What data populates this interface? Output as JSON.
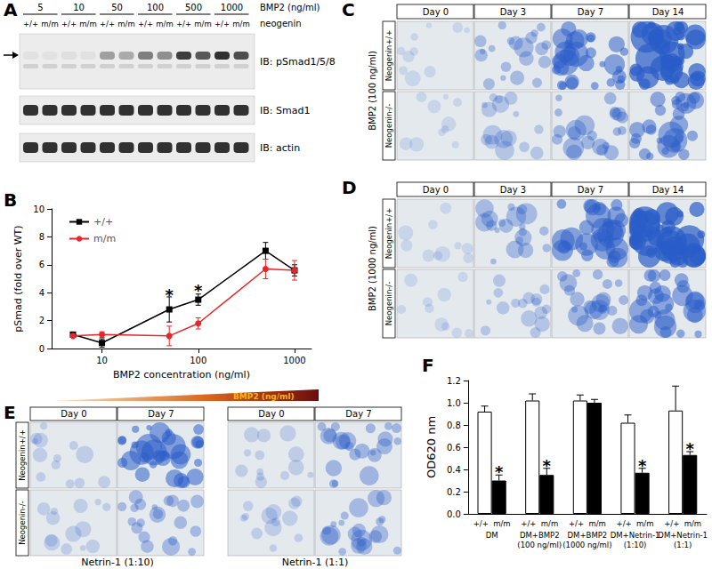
{
  "panels": {
    "A": {
      "panel_label": "A",
      "header": {
        "treatment": "BMP2 (ng/ml)",
        "genotype_row": "neogenin"
      },
      "concentrations": [
        "5",
        "10",
        "50",
        "100",
        "500",
        "1000"
      ],
      "genotypes": [
        "+/+",
        "m/m"
      ],
      "blots": [
        "IB: pSmad1/5/8",
        "IB: Smad1",
        "IB: actin"
      ]
    },
    "C": {
      "panel_label": "C",
      "condition": "BMP2 (100 ng/ml)",
      "days": [
        "Day 0",
        "Day 3",
        "Day 7",
        "Day 14"
      ],
      "rows": [
        "Neogenin+/+",
        "Neogenin-/-"
      ]
    },
    "D": {
      "panel_label": "D",
      "condition": "BMP2 (1000 ng/ml)",
      "days": [
        "Day 0",
        "Day 3",
        "Day 7",
        "Day 14"
      ],
      "rows": [
        "Neogenin+/+",
        "Neogenin-/-"
      ]
    },
    "E": {
      "panel_label": "E",
      "days": [
        "Day 0",
        "Day 7"
      ],
      "rows": [
        "Neogenin+/+",
        "Neogenin-/-"
      ],
      "groups": [
        "Netrin-1 (1:10)",
        "Netrin-1 (1:1)"
      ]
    }
  },
  "chart_data": [
    {
      "panel_label": "B",
      "type": "line",
      "log": "x",
      "x": [
        5,
        10,
        50,
        100,
        500,
        1000
      ],
      "series": [
        {
          "name": "+/+",
          "color": "#000000",
          "marker": "square",
          "values": [
            1.0,
            0.4,
            2.8,
            3.5,
            7.0,
            5.6
          ],
          "errors": [
            0.1,
            0.3,
            0.9,
            0.4,
            0.6,
            0.4
          ]
        },
        {
          "name": "m/m",
          "color": "#e8262a",
          "marker": "circle",
          "values": [
            0.9,
            1.0,
            0.9,
            1.8,
            5.7,
            5.6
          ],
          "errors": [
            0.1,
            0.2,
            0.7,
            0.4,
            0.7,
            0.7
          ]
        }
      ],
      "x_label": "BMP2 concentration (ng/ml)",
      "y_label": "pSmad (fold over WT)",
      "xlim": [
        3,
        1500
      ],
      "xticks": [
        10,
        100,
        1000
      ],
      "ylim": [
        0,
        10
      ],
      "yticks": [
        0,
        2,
        4,
        6,
        8,
        10
      ],
      "legend": "top-left",
      "annotations": [
        {
          "text": "*",
          "x": 50,
          "y": 3.8
        },
        {
          "text": "*",
          "x": 100,
          "y": 4.1
        }
      ],
      "gradient_label": "BMP2 (ng/ml)"
    },
    {
      "panel_label": "F",
      "type": "bar",
      "categories": [
        "DM",
        "DM+BMP2 (100 ng/ml)",
        "DM+BMP2 (1000 ng/ml)",
        "DM+Netrin-1 (1:10)",
        "DM+Netrin-1 (1:1)"
      ],
      "series": [
        {
          "name": "+/+",
          "color": "#ffffff",
          "values": [
            0.92,
            1.02,
            1.02,
            0.82,
            0.93
          ],
          "errors": [
            0.05,
            0.06,
            0.05,
            0.07,
            0.22
          ]
        },
        {
          "name": "m/m",
          "color": "#000000",
          "values": [
            0.3,
            0.35,
            1.0,
            0.37,
            0.53
          ],
          "errors": [
            0.05,
            0.06,
            0.03,
            0.04,
            0.03
          ]
        }
      ],
      "y_label": "OD620 nm",
      "ylim": [
        0,
        1.2
      ],
      "yticks": [
        {
          "value": 0,
          "label": "0.0"
        },
        0.2,
        0.4,
        0.6,
        0.8,
        {
          "value": 1.0,
          "label": "1.0"
        },
        1.2
      ],
      "annotations": [
        {
          "text": "*",
          "category": "DM",
          "series": "m/m",
          "y": 0.37
        },
        {
          "text": "*",
          "category": "DM+BMP2 (100 ng/ml)",
          "series": "m/m",
          "y": 0.43
        },
        {
          "text": "*",
          "category": "DM+Netrin-1 (1:10)",
          "series": "m/m",
          "y": 0.43
        },
        {
          "text": "*",
          "category": "DM+Netrin-1 (1:1)",
          "series": "m/m",
          "y": 0.58
        }
      ]
    }
  ]
}
